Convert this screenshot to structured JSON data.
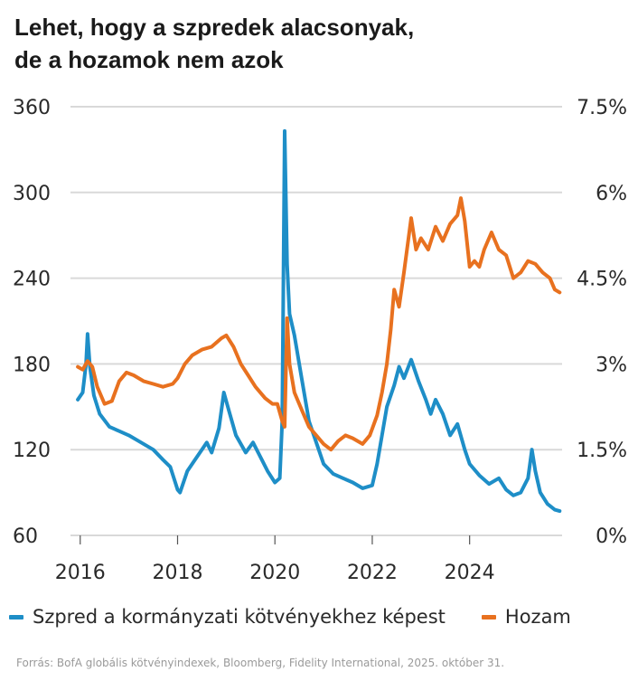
{
  "title_lines": [
    "Lehet, hogy a szpredek alacsonyak,",
    "de a hozamok nem azok"
  ],
  "footnote": "Forrás: BofA globális kötvényindexek, Bloomberg, Fidelity International, 2025. október 31.",
  "chart_data": {
    "type": "line",
    "left_axis": {
      "ticks": [
        "360",
        "300",
        "240",
        "180",
        "120",
        "60"
      ],
      "ylim": [
        60,
        360
      ]
    },
    "right_axis": {
      "ticks": [
        "7.5%",
        "6%",
        "4.5%",
        "3%",
        "1.5%",
        "0%"
      ],
      "ylim": [
        0,
        7.5
      ]
    },
    "x_ticks": [
      "2016",
      "2018",
      "2020",
      "2022",
      "2024"
    ],
    "xlim": [
      2015.8,
      2025.9
    ],
    "series": [
      {
        "name": "Szpred a kormányzati kötvényekhez képest",
        "axis": "left",
        "color": "#1e8ec7",
        "points": [
          [
            2015.95,
            155
          ],
          [
            2016.05,
            160
          ],
          [
            2016.12,
            180
          ],
          [
            2016.15,
            201
          ],
          [
            2016.2,
            178
          ],
          [
            2016.28,
            158
          ],
          [
            2016.4,
            145
          ],
          [
            2016.6,
            136
          ],
          [
            2016.8,
            133
          ],
          [
            2017.0,
            130
          ],
          [
            2017.2,
            126
          ],
          [
            2017.5,
            120
          ],
          [
            2017.7,
            113
          ],
          [
            2017.85,
            108
          ],
          [
            2018.0,
            92
          ],
          [
            2018.05,
            90
          ],
          [
            2018.2,
            105
          ],
          [
            2018.4,
            115
          ],
          [
            2018.5,
            120
          ],
          [
            2018.6,
            125
          ],
          [
            2018.7,
            118
          ],
          [
            2018.85,
            135
          ],
          [
            2018.95,
            160
          ],
          [
            2019.05,
            148
          ],
          [
            2019.2,
            130
          ],
          [
            2019.4,
            118
          ],
          [
            2019.55,
            125
          ],
          [
            2019.7,
            115
          ],
          [
            2019.85,
            105
          ],
          [
            2020.0,
            97
          ],
          [
            2020.1,
            100
          ],
          [
            2020.15,
            140
          ],
          [
            2020.2,
            343
          ],
          [
            2020.25,
            250
          ],
          [
            2020.3,
            215
          ],
          [
            2020.4,
            200
          ],
          [
            2020.55,
            170
          ],
          [
            2020.7,
            140
          ],
          [
            2020.85,
            125
          ],
          [
            2021.0,
            110
          ],
          [
            2021.2,
            103
          ],
          [
            2021.4,
            100
          ],
          [
            2021.6,
            97
          ],
          [
            2021.8,
            93
          ],
          [
            2022.0,
            95
          ],
          [
            2022.1,
            110
          ],
          [
            2022.2,
            130
          ],
          [
            2022.3,
            150
          ],
          [
            2022.45,
            165
          ],
          [
            2022.55,
            178
          ],
          [
            2022.65,
            170
          ],
          [
            2022.8,
            183
          ],
          [
            2022.95,
            168
          ],
          [
            2023.1,
            155
          ],
          [
            2023.2,
            145
          ],
          [
            2023.3,
            155
          ],
          [
            2023.45,
            145
          ],
          [
            2023.6,
            130
          ],
          [
            2023.75,
            138
          ],
          [
            2023.9,
            120
          ],
          [
            2024.0,
            110
          ],
          [
            2024.2,
            102
          ],
          [
            2024.4,
            96
          ],
          [
            2024.6,
            100
          ],
          [
            2024.75,
            92
          ],
          [
            2024.9,
            88
          ],
          [
            2025.05,
            90
          ],
          [
            2025.2,
            100
          ],
          [
            2025.28,
            120
          ],
          [
            2025.35,
            105
          ],
          [
            2025.45,
            90
          ],
          [
            2025.6,
            82
          ],
          [
            2025.75,
            78
          ],
          [
            2025.85,
            77
          ]
        ]
      },
      {
        "name": "Hozam",
        "axis": "right",
        "color": "#e8711f",
        "points": [
          [
            2015.95,
            2.95
          ],
          [
            2016.05,
            2.9
          ],
          [
            2016.15,
            3.05
          ],
          [
            2016.25,
            2.95
          ],
          [
            2016.35,
            2.6
          ],
          [
            2016.5,
            2.3
          ],
          [
            2016.65,
            2.35
          ],
          [
            2016.8,
            2.7
          ],
          [
            2016.95,
            2.85
          ],
          [
            2017.1,
            2.8
          ],
          [
            2017.3,
            2.7
          ],
          [
            2017.5,
            2.65
          ],
          [
            2017.7,
            2.6
          ],
          [
            2017.9,
            2.65
          ],
          [
            2018.0,
            2.75
          ],
          [
            2018.15,
            3.0
          ],
          [
            2018.3,
            3.15
          ],
          [
            2018.5,
            3.25
          ],
          [
            2018.7,
            3.3
          ],
          [
            2018.9,
            3.45
          ],
          [
            2019.0,
            3.5
          ],
          [
            2019.15,
            3.3
          ],
          [
            2019.3,
            3.0
          ],
          [
            2019.45,
            2.8
          ],
          [
            2019.6,
            2.6
          ],
          [
            2019.8,
            2.4
          ],
          [
            2019.95,
            2.3
          ],
          [
            2020.05,
            2.3
          ],
          [
            2020.15,
            2.0
          ],
          [
            2020.2,
            1.9
          ],
          [
            2020.25,
            3.8
          ],
          [
            2020.3,
            3.0
          ],
          [
            2020.4,
            2.5
          ],
          [
            2020.55,
            2.2
          ],
          [
            2020.7,
            1.9
          ],
          [
            2020.85,
            1.75
          ],
          [
            2021.0,
            1.6
          ],
          [
            2021.15,
            1.5
          ],
          [
            2021.3,
            1.65
          ],
          [
            2021.45,
            1.75
          ],
          [
            2021.6,
            1.7
          ],
          [
            2021.8,
            1.6
          ],
          [
            2021.95,
            1.75
          ],
          [
            2022.1,
            2.1
          ],
          [
            2022.2,
            2.5
          ],
          [
            2022.3,
            3.0
          ],
          [
            2022.38,
            3.6
          ],
          [
            2022.45,
            4.3
          ],
          [
            2022.55,
            4.0
          ],
          [
            2022.65,
            4.6
          ],
          [
            2022.8,
            5.55
          ],
          [
            2022.9,
            5.0
          ],
          [
            2023.0,
            5.2
          ],
          [
            2023.15,
            5.0
          ],
          [
            2023.3,
            5.4
          ],
          [
            2023.45,
            5.15
          ],
          [
            2023.6,
            5.45
          ],
          [
            2023.75,
            5.6
          ],
          [
            2023.82,
            5.9
          ],
          [
            2023.9,
            5.5
          ],
          [
            2024.0,
            4.7
          ],
          [
            2024.1,
            4.8
          ],
          [
            2024.2,
            4.7
          ],
          [
            2024.3,
            5.0
          ],
          [
            2024.45,
            5.3
          ],
          [
            2024.6,
            5.0
          ],
          [
            2024.75,
            4.9
          ],
          [
            2024.9,
            4.5
          ],
          [
            2025.05,
            4.6
          ],
          [
            2025.2,
            4.8
          ],
          [
            2025.35,
            4.75
          ],
          [
            2025.5,
            4.6
          ],
          [
            2025.65,
            4.5
          ],
          [
            2025.75,
            4.3
          ],
          [
            2025.85,
            4.25
          ]
        ]
      }
    ]
  }
}
